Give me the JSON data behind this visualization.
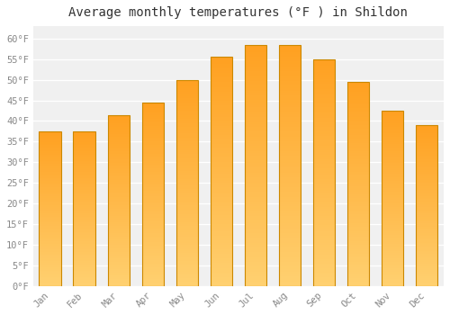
{
  "title": "Average monthly temperatures (°F ) in Shildon",
  "months": [
    "Jan",
    "Feb",
    "Mar",
    "Apr",
    "May",
    "Jun",
    "Jul",
    "Aug",
    "Sep",
    "Oct",
    "Nov",
    "Dec"
  ],
  "values": [
    37.5,
    37.5,
    41.5,
    44.5,
    50.0,
    55.5,
    58.5,
    58.5,
    55.0,
    49.5,
    42.5,
    39.0
  ],
  "bar_color_top": "#FFA020",
  "bar_color_bottom": "#FFD070",
  "bar_edge_color": "#CC8800",
  "ylim": [
    0,
    63
  ],
  "yticks": [
    0,
    5,
    10,
    15,
    20,
    25,
    30,
    35,
    40,
    45,
    50,
    55,
    60
  ],
  "background_color": "#FFFFFF",
  "plot_bg_color": "#F0F0F0",
  "grid_color": "#FFFFFF",
  "title_fontsize": 10,
  "tick_fontsize": 7.5,
  "title_color": "#333333",
  "tick_color": "#888888"
}
